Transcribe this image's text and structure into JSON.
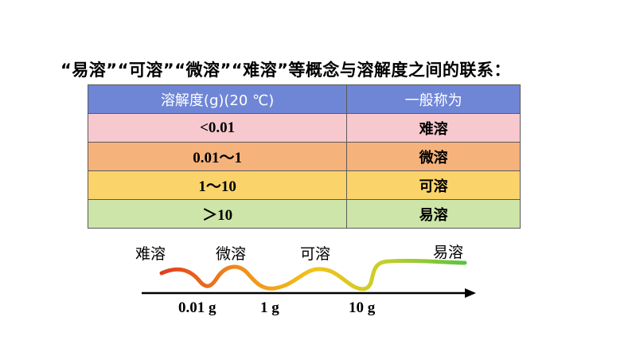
{
  "heading": "“易溶”“可溶”“微溶”“难溶”等概念与溶解度之间的联系：",
  "table": {
    "headers": [
      "溶解度(g)(20 ℃)",
      "一般称为"
    ],
    "rows": [
      {
        "range": "<0.01",
        "name": "难溶",
        "color": "#f8c8cf"
      },
      {
        "range": "0.01～1",
        "name": "微溶",
        "color": "#f6b27b"
      },
      {
        "range": "1～10",
        "name": "可溶",
        "color": "#fbd36b"
      },
      {
        "range": "＞10",
        "name": "易溶",
        "color": "#cde5a8"
      }
    ],
    "header_color": "#6f86d6"
  },
  "diagram": {
    "categories": [
      "难溶",
      "微溶",
      "可溶",
      "易溶"
    ],
    "ticks": [
      "0.01 g",
      "1 g",
      "10 g"
    ],
    "gradient": [
      "#e03a1e",
      "#f08a1c",
      "#f2c21a",
      "#c9cf2a",
      "#5cc23e"
    ]
  }
}
